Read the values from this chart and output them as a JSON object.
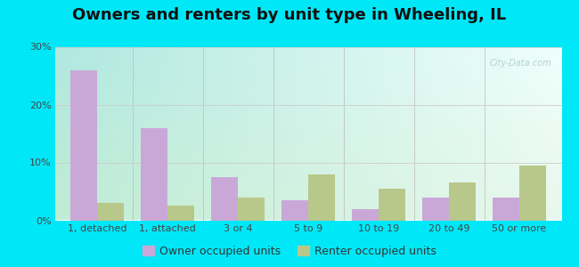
{
  "title": "Owners and renters by unit type in Wheeling, IL",
  "categories": [
    "1, detached",
    "1, attached",
    "3 or 4",
    "5 to 9",
    "10 to 19",
    "20 to 49",
    "50 or more"
  ],
  "owner_values": [
    26.0,
    16.0,
    7.5,
    3.5,
    2.0,
    4.0,
    4.0
  ],
  "renter_values": [
    3.0,
    2.5,
    4.0,
    8.0,
    5.5,
    6.5,
    9.5
  ],
  "owner_color": "#c9a8d8",
  "renter_color": "#b8c88a",
  "ylim": [
    0,
    30
  ],
  "yticks": [
    0,
    10,
    20,
    30
  ],
  "ytick_labels": [
    "0%",
    "10%",
    "20%",
    "30%"
  ],
  "background_outer": "#00e8f8",
  "grid_color": "#cccccc",
  "title_fontsize": 13,
  "tick_fontsize": 8,
  "legend_fontsize": 9,
  "bar_width": 0.38,
  "owner_label": "Owner occupied units",
  "renter_label": "Renter occupied units",
  "watermark": "City-Data.com",
  "bg_top_left": "#b0e8e0",
  "bg_top_right": "#e8faf8",
  "bg_bottom_left": "#c8e8d0",
  "bg_bottom_right": "#f0faf0"
}
